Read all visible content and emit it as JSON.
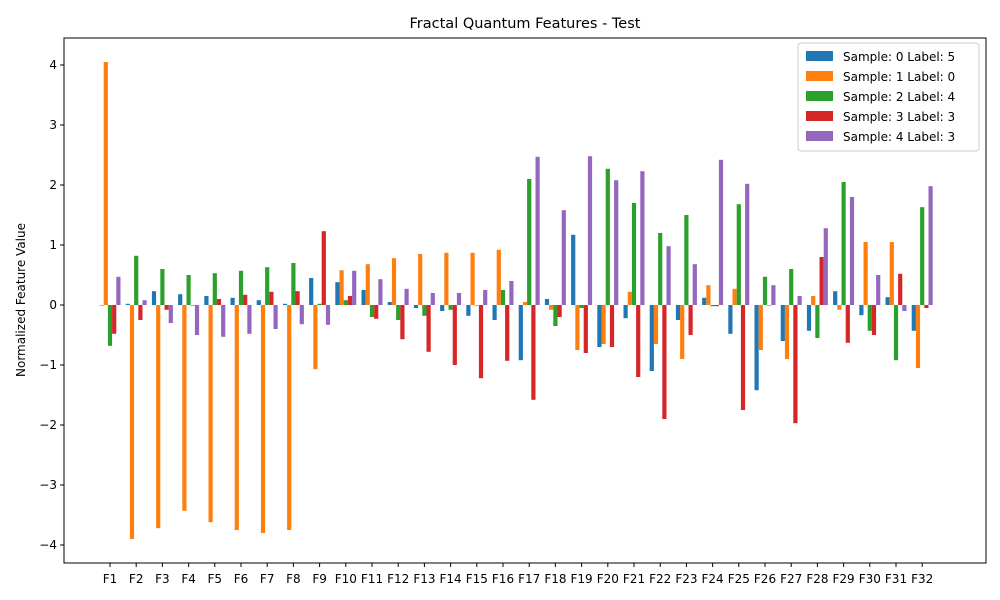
{
  "chart_data": {
    "type": "bar",
    "title": "Fractal Quantum Features - Test",
    "xlabel": "",
    "ylabel": "Normalized Feature Value",
    "ylim": [
      -4.3,
      4.45
    ],
    "yticks": [
      -4,
      -3,
      -2,
      -1,
      0,
      1,
      2,
      3,
      4
    ],
    "ytick_labels": [
      "−4",
      "−3",
      "−2",
      "−1",
      "0",
      "1",
      "2",
      "3",
      "4"
    ],
    "legend_position": "top-right",
    "grid": false,
    "categories": [
      "F1",
      "F2",
      "F3",
      "F4",
      "F5",
      "F6",
      "F7",
      "F8",
      "F9",
      "F10",
      "F11",
      "F12",
      "F13",
      "F14",
      "F15",
      "F16",
      "F17",
      "F18",
      "F19",
      "F20",
      "F21",
      "F22",
      "F23",
      "F24",
      "F25",
      "F26",
      "F27",
      "F28",
      "F29",
      "F30",
      "F31",
      "F32"
    ],
    "series": [
      {
        "name": "Sample: 0 Label: 5",
        "color": "#1f77b4",
        "values": [
          0.0,
          0.02,
          0.23,
          0.18,
          0.15,
          0.12,
          0.08,
          0.02,
          0.45,
          0.38,
          0.25,
          0.05,
          -0.05,
          -0.1,
          -0.18,
          -0.25,
          -0.92,
          0.1,
          1.17,
          -0.7,
          -0.22,
          -1.1,
          -0.25,
          0.12,
          -0.48,
          -1.42,
          -0.6,
          -0.43,
          0.23,
          -0.17,
          0.13,
          -0.43
        ]
      },
      {
        "name": "Sample: 1 Label: 0",
        "color": "#ff7f0e",
        "values": [
          4.05,
          -3.9,
          -3.72,
          -3.43,
          -3.62,
          -3.75,
          -3.8,
          -3.75,
          -1.07,
          0.58,
          0.68,
          0.78,
          0.85,
          0.87,
          0.87,
          0.92,
          0.05,
          -0.08,
          -0.75,
          -0.65,
          0.22,
          -0.65,
          -0.9,
          0.33,
          0.27,
          -0.75,
          -0.9,
          0.15,
          -0.08,
          1.05,
          1.05,
          -1.05
        ]
      },
      {
        "name": "Sample: 2 Label: 4",
        "color": "#2ca02c",
        "values": [
          -0.68,
          0.82,
          0.6,
          0.5,
          0.53,
          0.57,
          0.63,
          0.7,
          0.02,
          0.08,
          -0.2,
          -0.25,
          -0.18,
          -0.08,
          0.0,
          0.25,
          2.1,
          -0.35,
          -0.05,
          2.27,
          1.7,
          1.2,
          1.5,
          -0.02,
          1.68,
          0.47,
          0.6,
          -0.55,
          2.05,
          -0.43,
          -0.92,
          1.63
        ]
      },
      {
        "name": "Sample: 3 Label: 3",
        "color": "#d62728",
        "values": [
          -0.48,
          -0.25,
          -0.08,
          0.0,
          0.1,
          0.17,
          0.22,
          0.23,
          1.23,
          0.15,
          -0.23,
          -0.57,
          -0.78,
          -1.0,
          -1.22,
          -0.93,
          -1.58,
          -0.2,
          -0.8,
          -0.7,
          -1.2,
          -1.9,
          -0.5,
          -0.02,
          -1.75,
          0.0,
          -1.97,
          0.8,
          -0.63,
          -0.5,
          0.52,
          -0.05
        ]
      },
      {
        "name": "Sample: 4 Label: 3",
        "color": "#9467bd",
        "values": [
          0.47,
          0.08,
          -0.3,
          -0.5,
          -0.53,
          -0.48,
          -0.4,
          -0.32,
          -0.33,
          0.57,
          0.43,
          0.27,
          0.2,
          0.2,
          0.25,
          0.4,
          2.47,
          1.58,
          2.48,
          2.08,
          2.23,
          0.98,
          0.68,
          2.42,
          2.02,
          0.33,
          0.15,
          1.28,
          1.8,
          0.5,
          -0.1,
          1.98
        ]
      }
    ]
  }
}
